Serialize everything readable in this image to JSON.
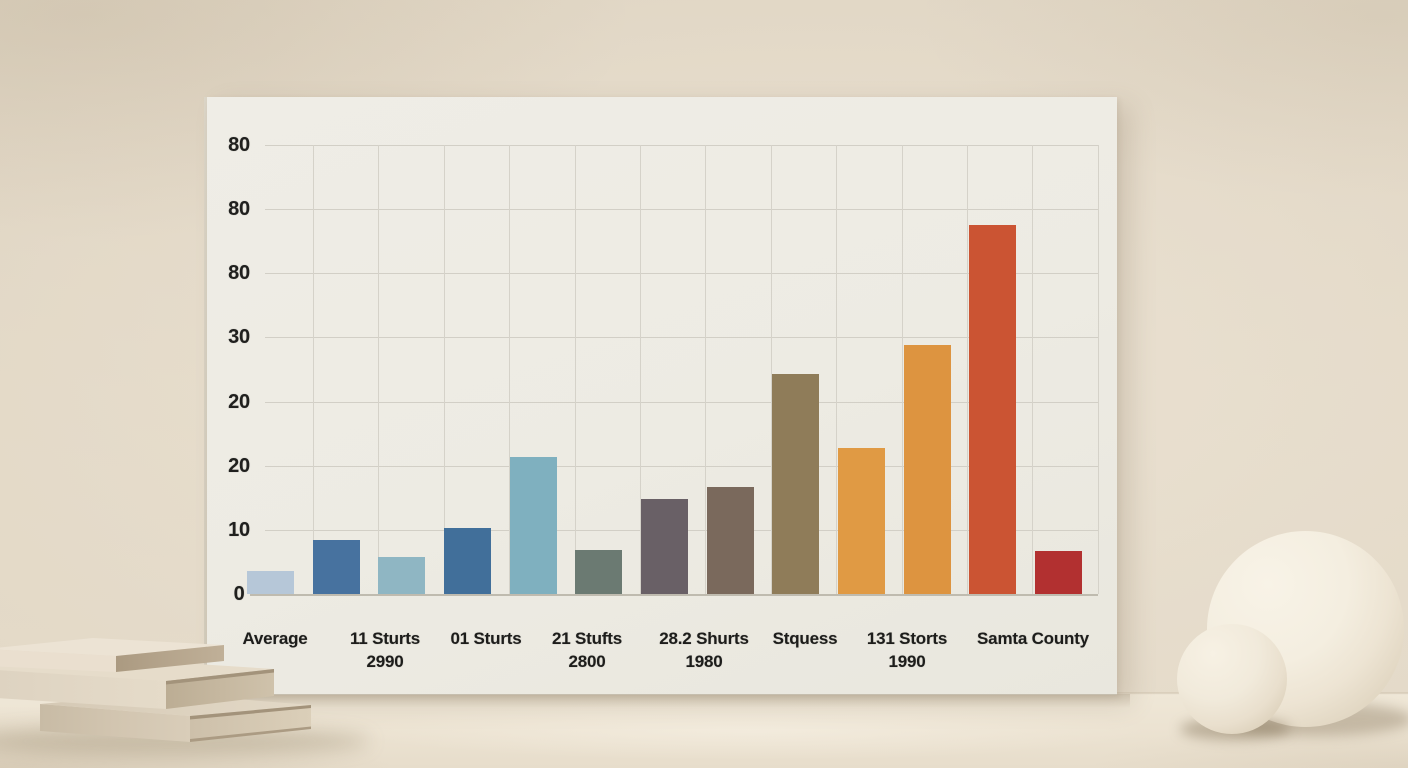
{
  "scene": {
    "description": "3D rendered beige room with a white chart board leaning on the wall, a stack of three cream books at the bottom left and two cream spheres at the bottom right",
    "colors": {
      "wall": "#ddd2c0",
      "floor": "#ece3d2",
      "board": "#edebe3",
      "gridline": "#d2cfc6",
      "text": "#1d1d1b",
      "books": "#ddd2bf",
      "spheres": "#f0e9db"
    },
    "props": {
      "book_stack_count": 3,
      "sphere_count": 2
    }
  },
  "chart_data": {
    "type": "bar",
    "title": "",
    "xlabel": "",
    "ylabel": "",
    "grid": true,
    "legend": false,
    "ylim": [
      0,
      85
    ],
    "y_tick_labels_top_to_bottom": [
      "80",
      "80",
      "80",
      "30",
      "20",
      "20",
      "10",
      "0"
    ],
    "x_tick_labels": [
      {
        "line1": "Average",
        "line2": ""
      },
      {
        "line1": "11 Sturts",
        "line2": "2990"
      },
      {
        "line1": "01 Sturts",
        "line2": ""
      },
      {
        "line1": "21 Stufts",
        "line2": "2800"
      },
      {
        "line1": "28.2 Shurts",
        "line2": "1980"
      },
      {
        "line1": "Stquess",
        "line2": ""
      },
      {
        "line1": "131 Storts",
        "line2": "1990"
      },
      {
        "line1": "Samta County",
        "line2": ""
      }
    ],
    "bars": [
      {
        "value": 3.6,
        "color": "#b6c7d8"
      },
      {
        "value": 8.4,
        "color": "#47729f"
      },
      {
        "value": 5.8,
        "color": "#8fb6c3"
      },
      {
        "value": 10.3,
        "color": "#416f9a"
      },
      {
        "value": 21.4,
        "color": "#7fb0bf"
      },
      {
        "value": 6.9,
        "color": "#6b7a72"
      },
      {
        "value": 14.8,
        "color": "#696066"
      },
      {
        "value": 16.7,
        "color": "#7a695c"
      },
      {
        "value": 34.3,
        "color": "#8f7c59"
      },
      {
        "value": 22.8,
        "color": "#e09a44"
      },
      {
        "value": 38.8,
        "color": "#dd9440"
      },
      {
        "value": 57.6,
        "color": "#cb5433"
      },
      {
        "value": 6.7,
        "color": "#b23030"
      }
    ]
  }
}
